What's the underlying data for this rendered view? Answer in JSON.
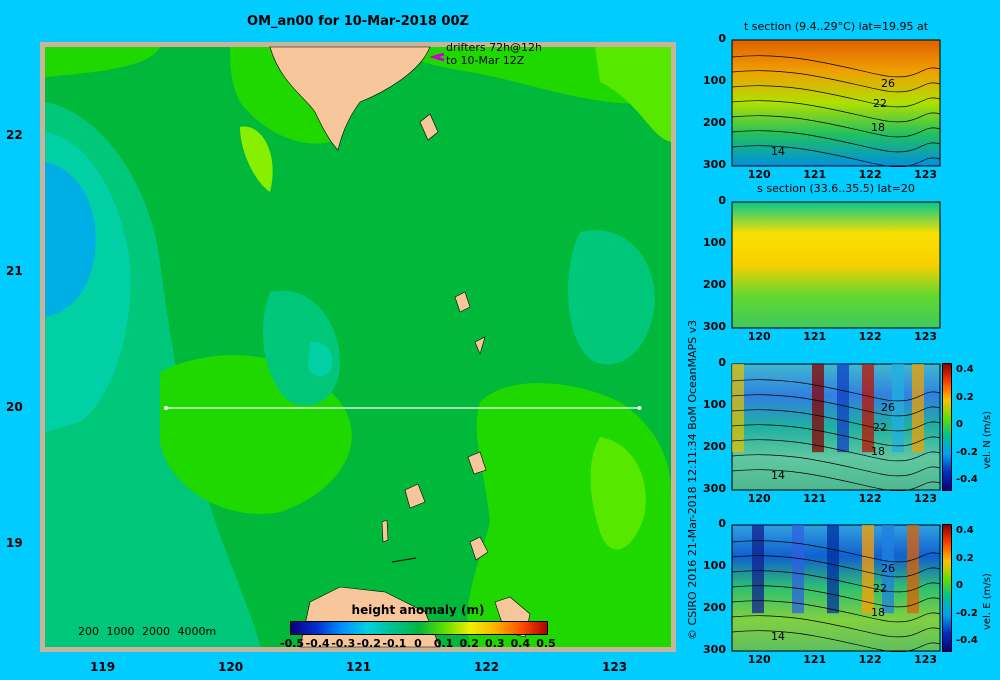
{
  "title": "OM_an00 for 10-Mar-2018 00Z",
  "drifters": {
    "line1": "drifters 72h@12h",
    "line2": "to 10-Mar 12Z"
  },
  "map": {
    "lat_ticks": [
      "22",
      "21",
      "20",
      "19"
    ],
    "lon_ticks": [
      "119",
      "120",
      "121",
      "122",
      "123"
    ],
    "section_lat": 20,
    "section_lon_range": [
      119.5,
      123.2
    ]
  },
  "bathymetry_legend": [
    "200",
    "1000",
    "2000",
    "4000m"
  ],
  "colorbar": {
    "title": "height anomaly (m)",
    "labels": [
      "-0.5",
      "-0.4",
      "-0.3",
      "-0.2",
      "-0.1",
      "0",
      "0.1",
      "0.2",
      "0.3",
      "0.4",
      "0.5"
    ]
  },
  "credit": "© CSIRO 2016   21-Mar-2018 12:11:34 BoM OceanMAPS v3",
  "panels": [
    {
      "title": "t section (9.4..29°C) lat=19.95 at",
      "contours": [
        "26",
        "22",
        "18",
        "14"
      ]
    },
    {
      "title": "s section (33.6..35.5) lat=20"
    },
    {
      "title": "",
      "unit": "vel. N (m/s)",
      "contours": [
        "26",
        "22",
        "18",
        "14"
      ]
    },
    {
      "title": "",
      "unit": "vel. E (m/s)",
      "contours": [
        "26",
        "22",
        "18",
        "14"
      ]
    }
  ],
  "panel_depth_ticks": [
    "0",
    "100",
    "200",
    "300"
  ],
  "panel_lon_ticks": [
    "120",
    "121",
    "122",
    "123"
  ],
  "velocity_ticks": [
    "0.4",
    "0.2",
    "0",
    "-0.2",
    "-0.4"
  ],
  "colors": {
    "background": "#00ccff",
    "land": "#f7c79b",
    "shelf": "#c8b49a",
    "ocean_main": "#00b83a"
  }
}
